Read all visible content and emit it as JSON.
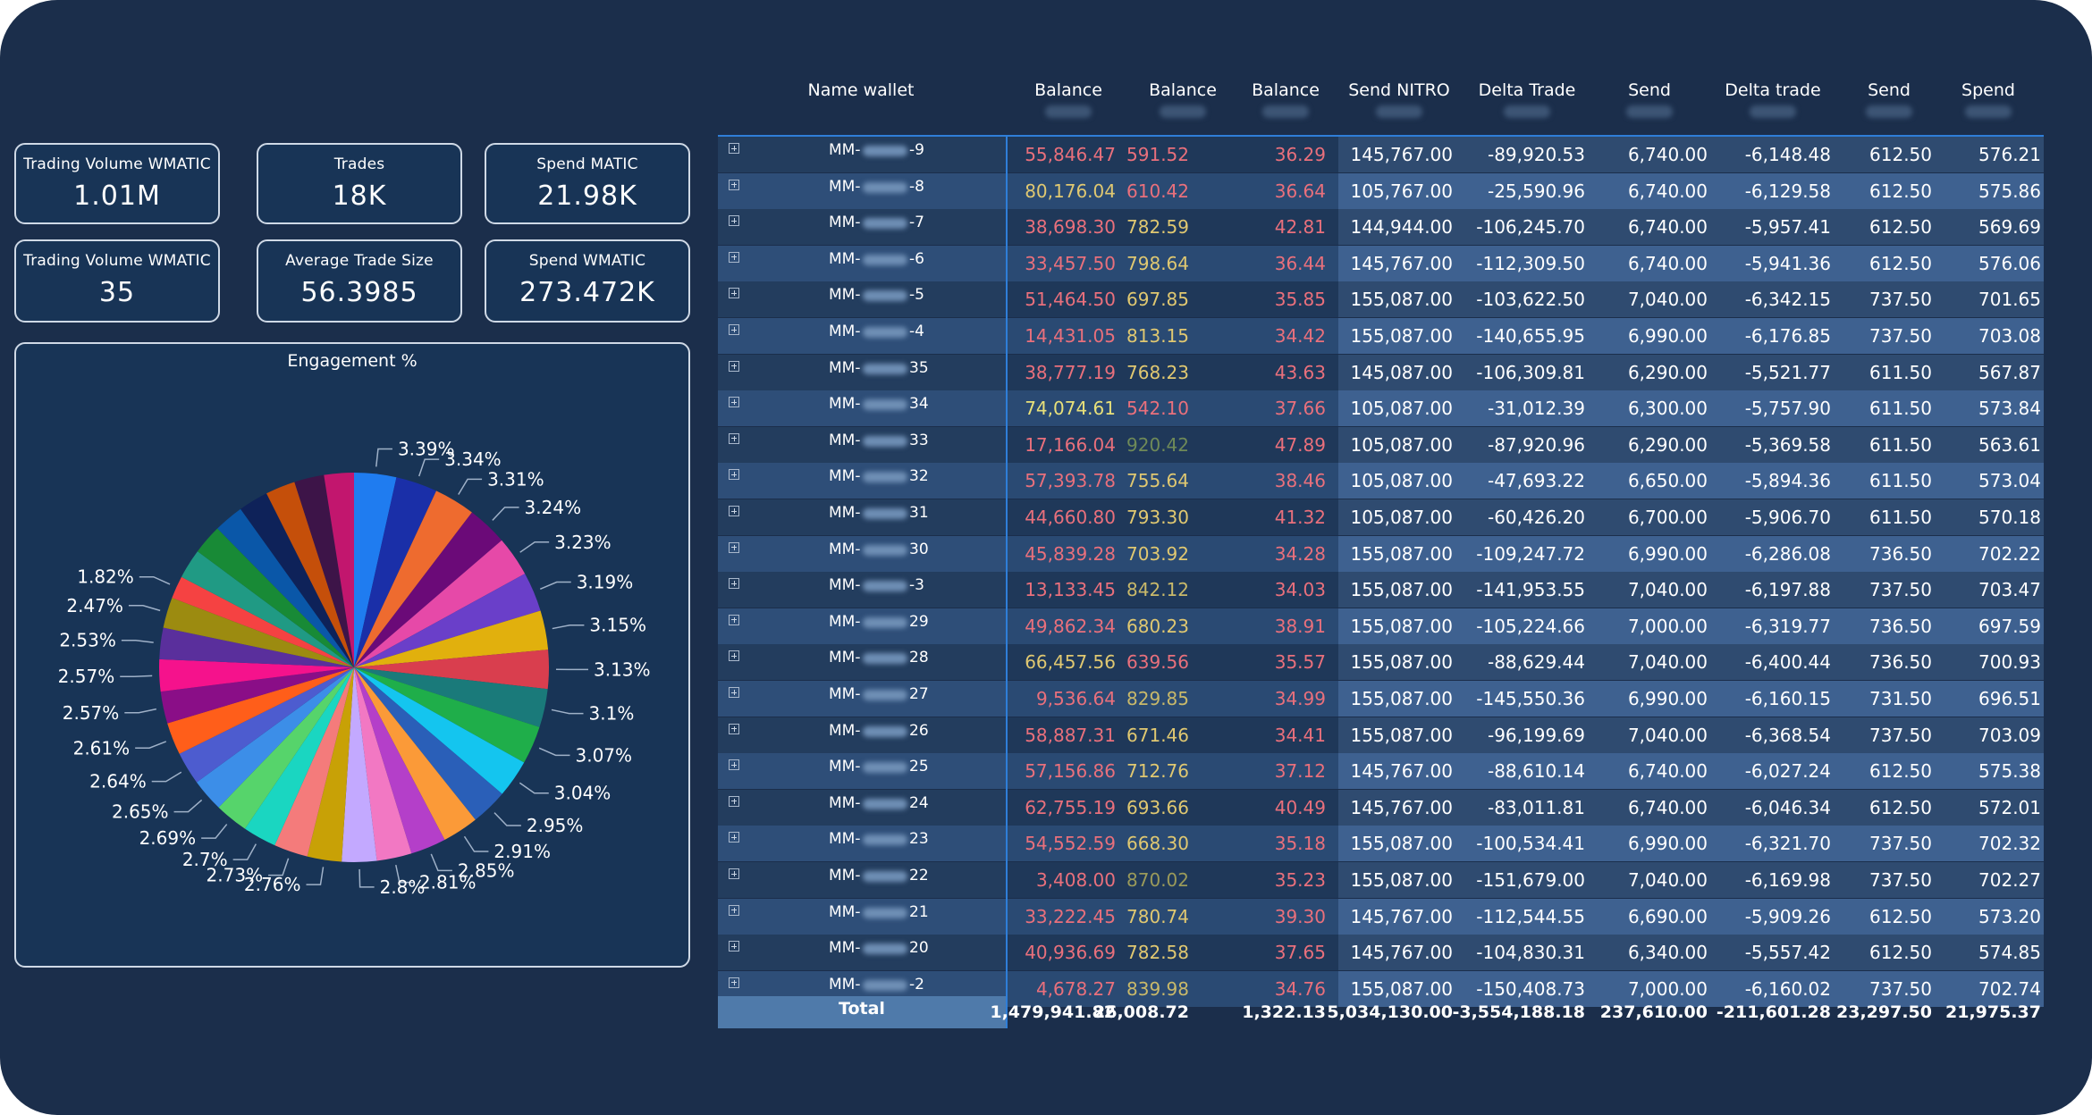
{
  "kpis": [
    {
      "label": "Trading Volume WMATIC",
      "value": "1.01M"
    },
    {
      "label": "Trades",
      "value": "18K"
    },
    {
      "label": "Spend MATIC",
      "value": "21.98K"
    },
    {
      "label": "Trading Volume WMATIC",
      "value": "35"
    },
    {
      "label": "Average Trade Size",
      "value": "56.3985"
    },
    {
      "label": "Spend WMATIC",
      "value": "273.472K"
    }
  ],
  "pie": {
    "title": "Engagement %",
    "slices": [
      {
        "value": 3.39,
        "label": "3.39%",
        "color": "#1f7cf0"
      },
      {
        "value": 3.34,
        "label": "3.34%",
        "color": "#1a2fa8"
      },
      {
        "value": 3.31,
        "label": "3.31%",
        "color": "#ee6b2f"
      },
      {
        "value": 3.24,
        "label": "3.24%",
        "color": "#6b0a78"
      },
      {
        "value": 3.23,
        "label": "3.23%",
        "color": "#e649a8"
      },
      {
        "value": 3.19,
        "label": "3.19%",
        "color": "#6a3fc9"
      },
      {
        "value": 3.15,
        "label": "3.15%",
        "color": "#e1b00d"
      },
      {
        "value": 3.13,
        "label": "3.13%",
        "color": "#d93e4e"
      },
      {
        "value": 3.1,
        "label": "3.1%",
        "color": "#1a7a7a"
      },
      {
        "value": 3.07,
        "label": "3.07%",
        "color": "#1fae4a"
      },
      {
        "value": 3.04,
        "label": "3.04%",
        "color": "#14c5ef"
      },
      {
        "value": 2.95,
        "label": "2.95%",
        "color": "#2a5fb8"
      },
      {
        "value": 2.91,
        "label": "2.91%",
        "color": "#fb9a38"
      },
      {
        "value": 2.85,
        "label": "2.85%",
        "color": "#b43fc9"
      },
      {
        "value": 2.81,
        "label": "2.81%",
        "color": "#f278c3"
      },
      {
        "value": 2.8,
        "label": "2.8%",
        "color": "#c3a9ff"
      },
      {
        "value": 2.76,
        "label": "2.76%",
        "color": "#c8a106"
      },
      {
        "value": 2.73,
        "label": "2.73%",
        "color": "#f47b7b"
      },
      {
        "value": 2.7,
        "label": "2.7%",
        "color": "#1ad6c1"
      },
      {
        "value": 2.69,
        "label": "2.69%",
        "color": "#56d46b"
      },
      {
        "value": 2.65,
        "label": "2.65%",
        "color": "#3c8ee8"
      },
      {
        "value": 2.64,
        "label": "2.64%",
        "color": "#4d5ccf"
      },
      {
        "value": 2.61,
        "label": "2.61%",
        "color": "#ff5e1a"
      },
      {
        "value": 2.57,
        "label": "2.57%",
        "color": "#8a0e87"
      },
      {
        "value": 2.57,
        "label": "2.57%",
        "color": "#f5128c"
      },
      {
        "value": 2.53,
        "label": "2.53%",
        "color": "#5a2f9c"
      },
      {
        "value": 2.47,
        "label": "2.47%",
        "color": "#9c8b10"
      },
      {
        "value": 1.82,
        "label": "1.82%",
        "color": "#f54242"
      },
      {
        "value": 0,
        "label": "",
        "color": "#209a84"
      },
      {
        "value": 0,
        "label": "",
        "color": "#188a36"
      },
      {
        "value": 0,
        "label": "",
        "color": "#0a57a8"
      },
      {
        "value": 0,
        "label": "",
        "color": "#0e2259"
      },
      {
        "value": 0,
        "label": "",
        "color": "#c54f0a"
      },
      {
        "value": 0,
        "label": "",
        "color": "#3d1448"
      },
      {
        "value": 0,
        "label": "",
        "color": "#c2166e"
      }
    ]
  },
  "table": {
    "headers": [
      "Name wallet",
      "Balance",
      "Balance",
      "Balance",
      "Send NITRO",
      "Delta Trade",
      "Send",
      "Delta trade",
      "Send",
      "Spend"
    ],
    "rows": [
      {
        "name": "MM-",
        "suffix": "-9",
        "c": [
          "55,846.47",
          "591.52",
          "36.29",
          "145,767.00",
          "-89,920.53",
          "6,740.00",
          "-6,148.48",
          "612.50",
          "576.21"
        ],
        "c1": "#e9707c",
        "c2": "#e9707c"
      },
      {
        "name": "MM-",
        "suffix": "-8",
        "c": [
          "80,176.04",
          "610.42",
          "36.64",
          "105,767.00",
          "-25,590.96",
          "6,740.00",
          "-6,129.58",
          "612.50",
          "575.86"
        ],
        "c1": "#e0c871",
        "c2": "#e9707c"
      },
      {
        "name": "MM-",
        "suffix": "-7",
        "c": [
          "38,698.30",
          "782.59",
          "42.81",
          "144,944.00",
          "-106,245.70",
          "6,740.00",
          "-5,957.41",
          "612.50",
          "569.69"
        ],
        "c1": "#e9707c",
        "c2": "#e0c871"
      },
      {
        "name": "MM-",
        "suffix": "-6",
        "c": [
          "33,457.50",
          "798.64",
          "36.44",
          "145,767.00",
          "-112,309.50",
          "6,740.00",
          "-5,941.36",
          "612.50",
          "576.06"
        ],
        "c1": "#e9707c",
        "c2": "#e0c871"
      },
      {
        "name": "MM-",
        "suffix": "-5",
        "c": [
          "51,464.50",
          "697.85",
          "35.85",
          "155,087.00",
          "-103,622.50",
          "7,040.00",
          "-6,342.15",
          "737.50",
          "701.65"
        ],
        "c1": "#e9707c",
        "c2": "#e0c871"
      },
      {
        "name": "MM-",
        "suffix": "-4",
        "c": [
          "14,431.05",
          "813.15",
          "34.42",
          "155,087.00",
          "-140,655.95",
          "6,990.00",
          "-6,176.85",
          "737.50",
          "703.08"
        ],
        "c1": "#e9707c",
        "c2": "#e0c871"
      },
      {
        "name": "MM-",
        "suffix": "35",
        "c": [
          "38,777.19",
          "768.23",
          "43.63",
          "145,087.00",
          "-106,309.81",
          "6,290.00",
          "-5,521.77",
          "611.50",
          "567.87"
        ],
        "c1": "#e9707c",
        "c2": "#e0c871"
      },
      {
        "name": "MM-",
        "suffix": "34",
        "c": [
          "74,074.61",
          "542.10",
          "37.66",
          "105,087.00",
          "-31,012.39",
          "6,300.00",
          "-5,757.90",
          "611.50",
          "573.84"
        ],
        "c1": "#e8e07a",
        "c2": "#e9707c"
      },
      {
        "name": "MM-",
        "suffix": "33",
        "c": [
          "17,166.04",
          "920.42",
          "47.89",
          "105,087.00",
          "-87,920.96",
          "6,290.00",
          "-5,369.58",
          "611.50",
          "563.61"
        ],
        "c1": "#e9707c",
        "c2": "#6f8a58"
      },
      {
        "name": "MM-",
        "suffix": "32",
        "c": [
          "57,393.78",
          "755.64",
          "38.46",
          "105,087.00",
          "-47,693.22",
          "6,650.00",
          "-5,894.36",
          "611.50",
          "573.04"
        ],
        "c1": "#e9707c",
        "c2": "#e0c871"
      },
      {
        "name": "MM-",
        "suffix": "31",
        "c": [
          "44,660.80",
          "793.30",
          "41.32",
          "105,087.00",
          "-60,426.20",
          "6,700.00",
          "-5,906.70",
          "611.50",
          "570.18"
        ],
        "c1": "#e9707c",
        "c2": "#e0c871"
      },
      {
        "name": "MM-",
        "suffix": "30",
        "c": [
          "45,839.28",
          "703.92",
          "34.28",
          "155,087.00",
          "-109,247.72",
          "6,990.00",
          "-6,286.08",
          "736.50",
          "702.22"
        ],
        "c1": "#e9707c",
        "c2": "#e0c871"
      },
      {
        "name": "MM-",
        "suffix": "-3",
        "c": [
          "13,133.45",
          "842.12",
          "34.03",
          "155,087.00",
          "-141,953.55",
          "7,040.00",
          "-6,197.88",
          "737.50",
          "703.47"
        ],
        "c1": "#e9707c",
        "c2": "#c9b96a"
      },
      {
        "name": "MM-",
        "suffix": "29",
        "c": [
          "49,862.34",
          "680.23",
          "38.91",
          "155,087.00",
          "-105,224.66",
          "7,000.00",
          "-6,319.77",
          "736.50",
          "697.59"
        ],
        "c1": "#e9707c",
        "c2": "#e0c871"
      },
      {
        "name": "MM-",
        "suffix": "28",
        "c": [
          "66,457.56",
          "639.56",
          "35.57",
          "155,087.00",
          "-88,629.44",
          "7,040.00",
          "-6,400.44",
          "736.50",
          "700.93"
        ],
        "c1": "#e0c871",
        "c2": "#e9707c"
      },
      {
        "name": "MM-",
        "suffix": "27",
        "c": [
          "9,536.64",
          "829.85",
          "34.99",
          "155,087.00",
          "-145,550.36",
          "6,990.00",
          "-6,160.15",
          "731.50",
          "696.51"
        ],
        "c1": "#e9707c",
        "c2": "#c9b96a"
      },
      {
        "name": "MM-",
        "suffix": "26",
        "c": [
          "58,887.31",
          "671.46",
          "34.41",
          "155,087.00",
          "-96,199.69",
          "7,040.00",
          "-6,368.54",
          "737.50",
          "703.09"
        ],
        "c1": "#e9707c",
        "c2": "#e0c871"
      },
      {
        "name": "MM-",
        "suffix": "25",
        "c": [
          "57,156.86",
          "712.76",
          "37.12",
          "145,767.00",
          "-88,610.14",
          "6,740.00",
          "-6,027.24",
          "612.50",
          "575.38"
        ],
        "c1": "#e9707c",
        "c2": "#e0c871"
      },
      {
        "name": "MM-",
        "suffix": "24",
        "c": [
          "62,755.19",
          "693.66",
          "40.49",
          "145,767.00",
          "-83,011.81",
          "6,740.00",
          "-6,046.34",
          "612.50",
          "572.01"
        ],
        "c1": "#e9707c",
        "c2": "#e0c871"
      },
      {
        "name": "MM-",
        "suffix": "23",
        "c": [
          "54,552.59",
          "668.30",
          "35.18",
          "155,087.00",
          "-100,534.41",
          "6,990.00",
          "-6,321.70",
          "737.50",
          "702.32"
        ],
        "c1": "#e9707c",
        "c2": "#e0c871"
      },
      {
        "name": "MM-",
        "suffix": "22",
        "c": [
          "3,408.00",
          "870.02",
          "35.23",
          "155,087.00",
          "-151,679.00",
          "7,040.00",
          "-6,169.98",
          "737.50",
          "702.27"
        ],
        "c1": "#e9707c",
        "c2": "#9a9a5a"
      },
      {
        "name": "MM-",
        "suffix": "21",
        "c": [
          "33,222.45",
          "780.74",
          "39.30",
          "145,767.00",
          "-112,544.55",
          "6,690.00",
          "-5,909.26",
          "612.50",
          "573.20"
        ],
        "c1": "#e9707c",
        "c2": "#e0c871"
      },
      {
        "name": "MM-",
        "suffix": "20",
        "c": [
          "40,936.69",
          "782.58",
          "37.65",
          "145,767.00",
          "-104,830.31",
          "6,340.00",
          "-5,557.42",
          "612.50",
          "574.85"
        ],
        "c1": "#e9707c",
        "c2": "#e0c871"
      },
      {
        "name": "MM-",
        "suffix": "-2",
        "c": [
          "4,678.27",
          "839.98",
          "34.76",
          "155,087.00",
          "-150,408.73",
          "7,000.00",
          "-6,160.02",
          "737.50",
          "702.74"
        ],
        "c1": "#e9707c",
        "c2": "#c9b96a"
      }
    ],
    "total": {
      "label": "Total",
      "c": [
        "1,479,941.82",
        "26,008.72",
        "1,322.13",
        "5,034,130.00",
        "-3,554,188.18",
        "237,610.00",
        "-211,601.28",
        "23,297.50",
        "21,975.37"
      ]
    }
  }
}
